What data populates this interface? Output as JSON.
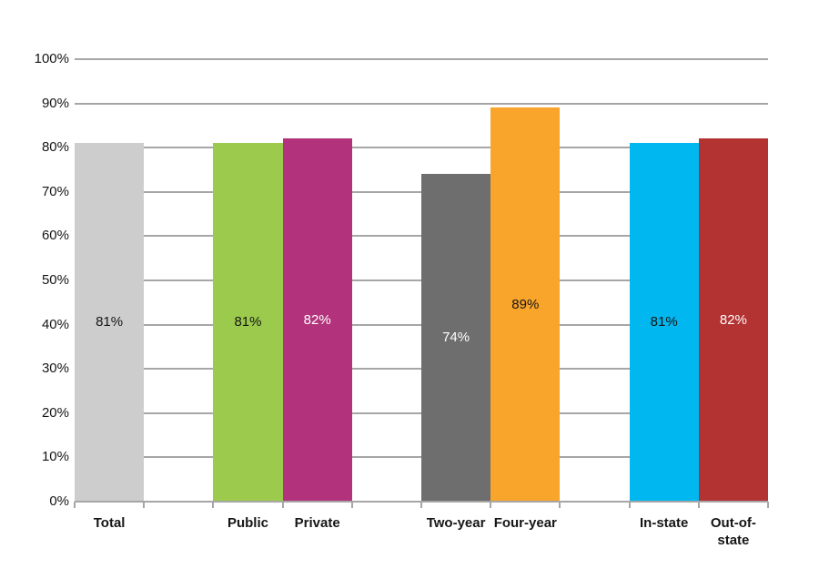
{
  "chart_data": {
    "type": "bar",
    "title": "",
    "xlabel": "",
    "ylabel": "",
    "categories": [
      "Total",
      "Public",
      "Private",
      "Two-year",
      "Four-year",
      "In-state",
      "Out-of-state"
    ],
    "values": [
      81,
      81,
      82,
      74,
      89,
      81,
      82
    ],
    "value_labels": [
      "81%",
      "81%",
      "82%",
      "74%",
      "89%",
      "81%",
      "82%"
    ],
    "bar_colors": [
      "#CDCDCD",
      "#9BCA4D",
      "#B2337B",
      "#6E6E6E",
      "#F9A52B",
      "#00B7EF",
      "#B33232"
    ],
    "value_label_colors": [
      "#161616",
      "#161616",
      "#FFFFFF",
      "#FFFFFF",
      "#161616",
      "#161616",
      "#FFFFFF"
    ],
    "slot_indices": [
      0,
      2,
      3,
      5,
      6,
      8,
      9
    ],
    "slot_count": 10,
    "ylim": [
      0,
      100
    ],
    "ytick_step": 10,
    "ytick_labels": [
      "0%",
      "10%",
      "20%",
      "30%",
      "40%",
      "50%",
      "60%",
      "70%",
      "80%",
      "90%",
      "100%"
    ],
    "grid": true,
    "legend": false,
    "gridline_color": "#A6A6A6",
    "axis_color": "#A6A6A6",
    "text_color": "#161616"
  }
}
